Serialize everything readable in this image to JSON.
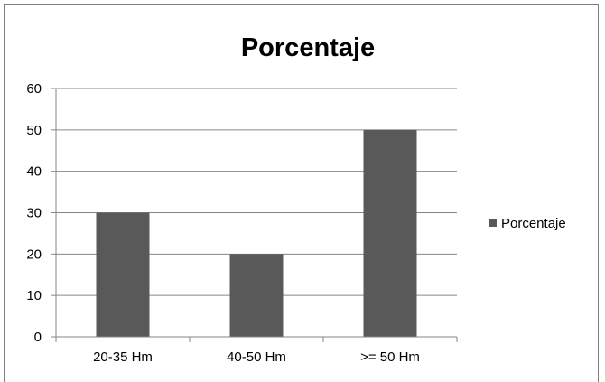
{
  "chart_data": {
    "type": "bar",
    "title": "Porcentaje",
    "xlabel": "",
    "ylabel": "",
    "categories": [
      "20-35 Hm",
      "40-50 Hm",
      ">= 50 Hm"
    ],
    "series": [
      {
        "name": "Porcentaje",
        "values": [
          30,
          20,
          50
        ],
        "color": "#595959"
      }
    ],
    "ylim": [
      0,
      60
    ],
    "yticks": [
      0,
      10,
      20,
      30,
      40,
      50,
      60
    ],
    "grid": true,
    "legend_position": "right"
  }
}
